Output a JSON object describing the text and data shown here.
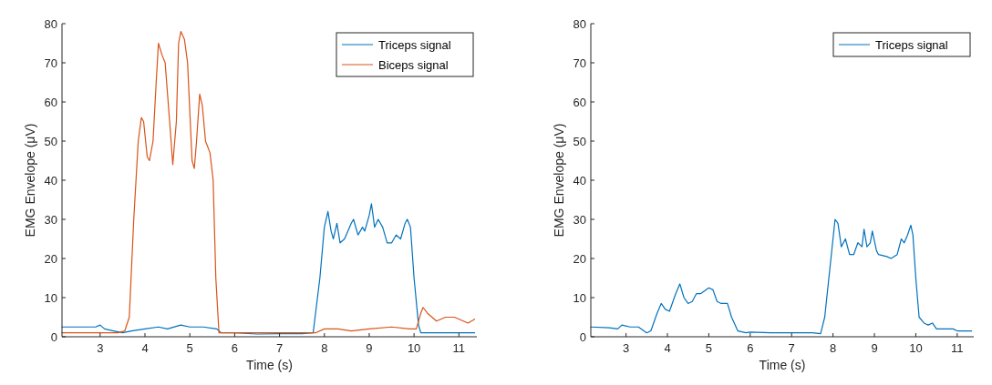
{
  "chart_data": [
    {
      "type": "line",
      "xlabel": "Time (s)",
      "ylabel": "EMG Envelope (μV)",
      "xlim": [
        2.15,
        11.4
      ],
      "xticks": [
        3,
        4,
        5,
        6,
        7,
        8,
        9,
        10,
        11
      ],
      "ylim": [
        0,
        80
      ],
      "yticks": [
        0,
        10,
        20,
        30,
        40,
        50,
        60,
        70,
        80
      ],
      "legend": "top right",
      "grid": false,
      "series": [
        {
          "name": "Triceps signal",
          "color": "#0072bd",
          "x": [
            2.15,
            2.6,
            2.9,
            3.0,
            3.1,
            3.3,
            3.5,
            3.7,
            4.0,
            4.3,
            4.5,
            4.8,
            5.0,
            5.3,
            5.6,
            5.7,
            6.0,
            6.5,
            7.0,
            7.5,
            7.75,
            7.9,
            8.0,
            8.08,
            8.15,
            8.2,
            8.28,
            8.35,
            8.45,
            8.6,
            8.65,
            8.75,
            8.85,
            8.9,
            9.0,
            9.05,
            9.12,
            9.2,
            9.3,
            9.4,
            9.5,
            9.6,
            9.7,
            9.8,
            9.85,
            9.92,
            10.0,
            10.1,
            10.15,
            10.5,
            11.0,
            11.35
          ],
          "values": [
            2.5,
            2.5,
            2.5,
            3,
            2,
            1.5,
            1,
            1.5,
            2,
            2.5,
            2,
            3,
            2.5,
            2.5,
            2,
            1,
            1,
            0.7,
            0.8,
            0.8,
            1,
            15,
            28,
            32,
            27,
            25,
            29,
            24,
            25,
            29,
            30,
            26,
            28,
            27,
            31,
            34,
            28,
            30,
            28,
            24,
            24,
            26,
            25,
            29,
            30,
            28,
            15,
            3,
            1,
            1,
            1,
            1
          ]
        },
        {
          "name": "Biceps signal",
          "color": "#d95319",
          "x": [
            2.15,
            3.0,
            3.4,
            3.55,
            3.65,
            3.75,
            3.85,
            3.92,
            3.97,
            4.05,
            4.1,
            4.18,
            4.25,
            4.3,
            4.38,
            4.45,
            4.55,
            4.62,
            4.7,
            4.75,
            4.8,
            4.88,
            4.95,
            5.05,
            5.1,
            5.15,
            5.22,
            5.28,
            5.35,
            5.45,
            5.52,
            5.58,
            5.65,
            6.0,
            7.0,
            7.8,
            8.0,
            8.3,
            8.6,
            9.0,
            9.5,
            9.9,
            10.05,
            10.15,
            10.2,
            10.3,
            10.5,
            10.7,
            10.9,
            11.1,
            11.2,
            11.35
          ],
          "values": [
            1,
            1,
            1,
            1.5,
            5,
            30,
            50,
            56,
            55,
            46,
            45,
            50,
            65,
            75,
            72,
            70,
            55,
            44,
            55,
            75,
            78,
            76,
            70,
            45,
            43,
            50,
            62,
            59,
            50,
            47,
            40,
            15,
            1,
            1,
            1,
            1,
            2,
            2,
            1.5,
            2,
            2.5,
            2,
            2,
            6,
            7.5,
            6,
            4,
            5,
            5,
            4,
            3.5,
            4.5
          ]
        }
      ]
    },
    {
      "type": "line",
      "xlabel": "Time (s)",
      "ylabel": "EMG Envelope (μV)",
      "xlim": [
        2.15,
        11.4
      ],
      "xticks": [
        3,
        4,
        5,
        6,
        7,
        8,
        9,
        10,
        11
      ],
      "ylim": [
        0,
        80
      ],
      "yticks": [
        0,
        10,
        20,
        30,
        40,
        50,
        60,
        70,
        80
      ],
      "legend": "top right",
      "grid": false,
      "series": [
        {
          "name": "Triceps signal",
          "color": "#0072bd",
          "x": [
            2.15,
            2.6,
            2.8,
            2.9,
            3.1,
            3.3,
            3.5,
            3.6,
            3.75,
            3.85,
            3.95,
            4.05,
            4.2,
            4.3,
            4.4,
            4.5,
            4.6,
            4.7,
            4.8,
            5.0,
            5.1,
            5.2,
            5.3,
            5.45,
            5.55,
            5.7,
            5.9,
            6.0,
            6.5,
            7.0,
            7.5,
            7.7,
            7.8,
            7.9,
            8.0,
            8.05,
            8.12,
            8.2,
            8.3,
            8.4,
            8.5,
            8.6,
            8.7,
            8.75,
            8.82,
            8.9,
            8.95,
            9.05,
            9.1,
            9.3,
            9.4,
            9.55,
            9.65,
            9.72,
            9.8,
            9.88,
            9.93,
            10.0,
            10.08,
            10.2,
            10.3,
            10.4,
            10.5,
            10.7,
            10.9,
            11.0,
            11.35
          ],
          "values": [
            2.5,
            2.3,
            2,
            3,
            2.5,
            2.5,
            1,
            1.5,
            6,
            8.5,
            7,
            6.5,
            11,
            13.5,
            10,
            8.5,
            9,
            11,
            11,
            12.5,
            12,
            9,
            8.5,
            8.5,
            5,
            1.5,
            1,
            1.2,
            1,
            1,
            1,
            0.8,
            5,
            15,
            25,
            30,
            29,
            23,
            25,
            21,
            21,
            24,
            23,
            27.5,
            23,
            24,
            27,
            22,
            21,
            20.5,
            20,
            21,
            25,
            24,
            26,
            28.5,
            26,
            15,
            5,
            3.5,
            3,
            3.5,
            2,
            2,
            2,
            1.5,
            1.5
          ]
        }
      ]
    }
  ]
}
